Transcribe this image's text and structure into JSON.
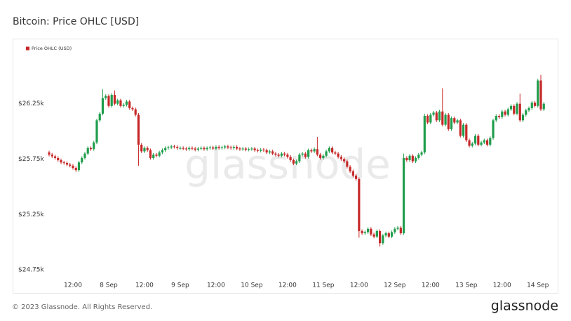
{
  "chart_data": {
    "type": "candlestick",
    "title": "Bitcoin: Price OHLC [USD]",
    "series": [
      {
        "name": "Price OHLC (USD)",
        "color": "#c62828",
        "up_color": "#1f9d4c",
        "down_color": "#c62828",
        "x": [
          "7 Sep 04:00",
          "7 Sep 05:00",
          "7 Sep 06:00",
          "7 Sep 07:00",
          "7 Sep 08:00",
          "7 Sep 09:00",
          "7 Sep 10:00",
          "7 Sep 11:00",
          "7 Sep 12:00",
          "7 Sep 13:00",
          "7 Sep 14:00",
          "7 Sep 15:00",
          "7 Sep 16:00",
          "7 Sep 17:00",
          "7 Sep 18:00",
          "7 Sep 19:00",
          "7 Sep 20:00",
          "7 Sep 21:00",
          "7 Sep 22:00",
          "7 Sep 23:00",
          "8 Sep 00:00",
          "8 Sep 01:00",
          "8 Sep 02:00",
          "8 Sep 03:00",
          "8 Sep 04:00",
          "8 Sep 05:00",
          "8 Sep 06:00",
          "8 Sep 07:00",
          "8 Sep 08:00",
          "8 Sep 09:00",
          "8 Sep 10:00",
          "8 Sep 11:00",
          "8 Sep 12:00",
          "8 Sep 13:00",
          "8 Sep 14:00",
          "8 Sep 15:00",
          "8 Sep 16:00",
          "8 Sep 17:00",
          "8 Sep 18:00",
          "8 Sep 19:00",
          "8 Sep 20:00",
          "8 Sep 21:00",
          "8 Sep 22:00",
          "8 Sep 23:00",
          "9 Sep 00:00",
          "9 Sep 01:00",
          "9 Sep 02:00",
          "9 Sep 03:00",
          "9 Sep 04:00",
          "9 Sep 05:00",
          "9 Sep 06:00",
          "9 Sep 07:00",
          "9 Sep 08:00",
          "9 Sep 09:00",
          "9 Sep 10:00",
          "9 Sep 11:00",
          "9 Sep 12:00",
          "9 Sep 13:00",
          "9 Sep 14:00",
          "9 Sep 15:00",
          "9 Sep 16:00",
          "9 Sep 17:00",
          "9 Sep 18:00",
          "9 Sep 19:00",
          "9 Sep 20:00",
          "9 Sep 21:00",
          "9 Sep 22:00",
          "9 Sep 23:00",
          "10 Sep 00:00",
          "10 Sep 01:00",
          "10 Sep 02:00",
          "10 Sep 03:00",
          "10 Sep 04:00",
          "10 Sep 05:00",
          "10 Sep 06:00",
          "10 Sep 07:00",
          "10 Sep 08:00",
          "10 Sep 09:00",
          "10 Sep 10:00",
          "10 Sep 11:00",
          "10 Sep 12:00",
          "10 Sep 13:00",
          "10 Sep 14:00",
          "10 Sep 15:00",
          "10 Sep 16:00",
          "10 Sep 17:00",
          "10 Sep 18:00",
          "10 Sep 19:00",
          "10 Sep 20:00",
          "10 Sep 21:00",
          "10 Sep 22:00",
          "10 Sep 23:00",
          "11 Sep 00:00",
          "11 Sep 01:00",
          "11 Sep 02:00",
          "11 Sep 03:00",
          "11 Sep 04:00",
          "11 Sep 05:00",
          "11 Sep 06:00",
          "11 Sep 07:00",
          "11 Sep 08:00",
          "11 Sep 09:00",
          "11 Sep 10:00",
          "11 Sep 11:00",
          "11 Sep 12:00",
          "11 Sep 13:00",
          "11 Sep 14:00",
          "11 Sep 15:00",
          "11 Sep 16:00",
          "11 Sep 17:00",
          "11 Sep 18:00",
          "11 Sep 19:00",
          "11 Sep 20:00",
          "11 Sep 21:00",
          "11 Sep 22:00",
          "11 Sep 23:00",
          "12 Sep 00:00",
          "12 Sep 01:00",
          "12 Sep 02:00",
          "12 Sep 03:00",
          "12 Sep 04:00",
          "12 Sep 05:00",
          "12 Sep 06:00",
          "12 Sep 07:00",
          "12 Sep 08:00",
          "12 Sep 09:00",
          "12 Sep 10:00",
          "12 Sep 11:00",
          "12 Sep 12:00",
          "12 Sep 13:00",
          "12 Sep 14:00",
          "12 Sep 15:00",
          "12 Sep 16:00",
          "12 Sep 17:00",
          "12 Sep 18:00",
          "12 Sep 19:00",
          "12 Sep 20:00",
          "12 Sep 21:00",
          "12 Sep 22:00",
          "12 Sep 23:00",
          "13 Sep 00:00",
          "13 Sep 01:00",
          "13 Sep 02:00",
          "13 Sep 03:00",
          "13 Sep 04:00",
          "13 Sep 05:00",
          "13 Sep 06:00",
          "13 Sep 07:00",
          "13 Sep 08:00",
          "13 Sep 09:00",
          "13 Sep 10:00",
          "13 Sep 11:00",
          "13 Sep 12:00",
          "13 Sep 13:00",
          "13 Sep 14:00",
          "13 Sep 15:00",
          "13 Sep 16:00",
          "13 Sep 17:00",
          "13 Sep 18:00",
          "13 Sep 19:00",
          "13 Sep 20:00",
          "13 Sep 21:00",
          "13 Sep 22:00",
          "13 Sep 23:00",
          "14 Sep 00:00",
          "14 Sep 01:00",
          "14 Sep 02:00"
        ],
        "open": [
          25810,
          25790,
          25775,
          25760,
          25740,
          25720,
          25715,
          25700,
          25690,
          25670,
          25650,
          25720,
          25760,
          25800,
          25850,
          25840,
          25900,
          26100,
          26160,
          26300,
          26320,
          26230,
          26330,
          26250,
          26280,
          26230,
          26240,
          26270,
          26210,
          26200,
          26150,
          25880,
          25820,
          25850,
          25830,
          25760,
          25790,
          25780,
          25810,
          25830,
          25850,
          25855,
          25865,
          25860,
          25850,
          25850,
          25845,
          25840,
          25850,
          25845,
          25835,
          25845,
          25850,
          25840,
          25850,
          25855,
          25845,
          25860,
          25850,
          25855,
          25865,
          25855,
          25850,
          25860,
          25845,
          25840,
          25845,
          25835,
          25840,
          25845,
          25830,
          25825,
          25835,
          25830,
          25810,
          25820,
          25800,
          25790,
          25780,
          25800,
          25790,
          25770,
          25740,
          25710,
          25730,
          25790,
          25800,
          25770,
          25830,
          25820,
          25840,
          25790,
          25760,
          25780,
          25820,
          25850,
          25810,
          25800,
          25770,
          25750,
          25730,
          25680,
          25640,
          25600,
          25570,
          25100,
          25080,
          25090,
          25120,
          25070,
          25050,
          25100,
          24990,
          25060,
          25080,
          25050,
          25090,
          25120,
          25130,
          25080,
          25760,
          25740,
          25780,
          25730,
          25760,
          25790,
          25810,
          26140,
          26080,
          26150,
          26170,
          26100,
          26180,
          26060,
          26150,
          26020,
          26120,
          26080,
          26100,
          25960,
          26060,
          25920,
          25870,
          25890,
          25960,
          25880,
          25900,
          25920,
          25880,
          25940,
          26100,
          26140,
          26130,
          26180,
          26150,
          26200,
          26230,
          26160,
          26250,
          26100,
          26150,
          26190,
          26210,
          26260,
          26230,
          26460,
          26200
        ],
        "high": [
          25825,
          25805,
          25790,
          25775,
          25755,
          25735,
          25730,
          25715,
          25705,
          25685,
          25735,
          25775,
          25815,
          25865,
          25865,
          25915,
          26115,
          26175,
          26380,
          26335,
          26335,
          26345,
          26370,
          26295,
          26295,
          26255,
          26285,
          26285,
          26225,
          26215,
          26165,
          25895,
          25865,
          25865,
          25845,
          25805,
          25805,
          25825,
          25845,
          25865,
          25870,
          25880,
          25880,
          25875,
          25865,
          25865,
          25860,
          25865,
          25865,
          25860,
          25860,
          25865,
          25865,
          25865,
          25870,
          25870,
          25875,
          25875,
          25870,
          25880,
          25880,
          25870,
          25875,
          25875,
          25860,
          25860,
          25860,
          25855,
          25860,
          25860,
          25845,
          25850,
          25850,
          25845,
          25835,
          25835,
          25815,
          25805,
          25815,
          25815,
          25805,
          25785,
          25755,
          25745,
          25805,
          25815,
          25815,
          25845,
          25845,
          25855,
          25950,
          25805,
          25795,
          25835,
          25865,
          25865,
          25825,
          25815,
          25785,
          25765,
          25745,
          25695,
          25655,
          25615,
          25585,
          25115,
          25105,
          25135,
          25135,
          25085,
          25115,
          25115,
          25075,
          25095,
          25095,
          25105,
          25135,
          25145,
          25145,
          25800,
          25775,
          25795,
          25795,
          25775,
          25805,
          25825,
          26160,
          26155,
          26165,
          26185,
          26185,
          26195,
          26390,
          26165,
          26165,
          26135,
          26135,
          26115,
          26115,
          26075,
          26075,
          25935,
          25905,
          25975,
          25975,
          25915,
          25935,
          25935,
          25955,
          26115,
          26155,
          26155,
          26195,
          26195,
          26215,
          26245,
          26245,
          26265,
          26340,
          26165,
          26205,
          26225,
          26275,
          26275,
          26475,
          26510,
          26265
        ],
        "low": [
          25775,
          25760,
          25745,
          25725,
          25705,
          25700,
          25685,
          25675,
          25655,
          25635,
          25635,
          25705,
          25745,
          25785,
          25825,
          25825,
          25885,
          26085,
          26145,
          26285,
          26215,
          26215,
          26235,
          26235,
          26215,
          26215,
          26225,
          26195,
          26185,
          26135,
          25690,
          25805,
          25805,
          25815,
          25745,
          25745,
          25765,
          25765,
          25795,
          25815,
          25835,
          25840,
          25845,
          25835,
          25835,
          25830,
          25825,
          25825,
          25830,
          25820,
          25820,
          25830,
          25825,
          25825,
          25835,
          25830,
          25830,
          25835,
          25835,
          25840,
          25840,
          25835,
          25835,
          25830,
          25825,
          25825,
          25820,
          25820,
          25825,
          25815,
          25810,
          25810,
          25815,
          25795,
          25795,
          25785,
          25775,
          25765,
          25765,
          25775,
          25755,
          25725,
          25695,
          25695,
          25715,
          25775,
          25755,
          25755,
          25805,
          25805,
          25775,
          25745,
          25745,
          25765,
          25805,
          25795,
          25785,
          25755,
          25735,
          25715,
          25665,
          25625,
          25585,
          25555,
          25040,
          25065,
          25065,
          25075,
          25055,
          25035,
          25035,
          24960,
          24975,
          25045,
          25035,
          25035,
          25075,
          25105,
          25065,
          25065,
          25725,
          25725,
          25715,
          25715,
          25745,
          25775,
          25795,
          26065,
          26065,
          26135,
          26085,
          26085,
          26045,
          26045,
          26005,
          26005,
          26065,
          26065,
          25945,
          25945,
          25905,
          25855,
          25855,
          25875,
          25865,
          25865,
          25885,
          25865,
          25865,
          25925,
          26085,
          26115,
          26115,
          26135,
          26135,
          26185,
          26145,
          26145,
          26085,
          26085,
          26135,
          26175,
          26195,
          26215,
          26215,
          26185,
          26185
        ],
        "close": [
          25790,
          25775,
          25760,
          25740,
          25720,
          25715,
          25700,
          25690,
          25670,
          25650,
          25720,
          25760,
          25800,
          25850,
          25840,
          25900,
          26100,
          26160,
          26300,
          26320,
          26230,
          26330,
          26250,
          26280,
          26230,
          26240,
          26270,
          26210,
          26200,
          26150,
          25880,
          25820,
          25850,
          25830,
          25760,
          25790,
          25780,
          25810,
          25830,
          25850,
          25855,
          25865,
          25860,
          25850,
          25850,
          25845,
          25840,
          25850,
          25845,
          25835,
          25845,
          25850,
          25840,
          25850,
          25855,
          25845,
          25860,
          25850,
          25855,
          25865,
          25855,
          25850,
          25860,
          25845,
          25840,
          25845,
          25835,
          25840,
          25845,
          25830,
          25825,
          25835,
          25830,
          25810,
          25820,
          25800,
          25790,
          25780,
          25800,
          25790,
          25770,
          25740,
          25710,
          25730,
          25790,
          25800,
          25770,
          25830,
          25820,
          25840,
          25790,
          25760,
          25780,
          25820,
          25850,
          25810,
          25800,
          25770,
          25750,
          25730,
          25680,
          25640,
          25600,
          25570,
          25100,
          25080,
          25090,
          25120,
          25070,
          25050,
          25100,
          24990,
          25060,
          25080,
          25050,
          25090,
          25120,
          25130,
          25080,
          25760,
          25740,
          25780,
          25730,
          25760,
          25790,
          25810,
          26140,
          26080,
          26150,
          26170,
          26100,
          26180,
          26060,
          26150,
          26020,
          26120,
          26080,
          26100,
          25960,
          26060,
          25920,
          25870,
          25890,
          25960,
          25880,
          25900,
          25920,
          25880,
          25940,
          26100,
          26140,
          26130,
          26180,
          26150,
          26200,
          26230,
          26160,
          26250,
          26100,
          26150,
          26190,
          26210,
          26260,
          26230,
          26460,
          26200,
          26250
        ]
      }
    ],
    "xlim": [
      "7 Sep 00:00",
      "14 Sep 05:00"
    ],
    "xticks": [
      {
        "value": "7 Sep 12:00",
        "label": "12:00"
      },
      {
        "value": "8 Sep 00:00",
        "label": "8 Sep"
      },
      {
        "value": "8 Sep 12:00",
        "label": "12:00"
      },
      {
        "value": "9 Sep 00:00",
        "label": "9 Sep"
      },
      {
        "value": "9 Sep 12:00",
        "label": "12:00"
      },
      {
        "value": "10 Sep 00:00",
        "label": "10 Sep"
      },
      {
        "value": "10 Sep 12:00",
        "label": "12:00"
      },
      {
        "value": "11 Sep 00:00",
        "label": "11 Sep"
      },
      {
        "value": "11 Sep 12:00",
        "label": "12:00"
      },
      {
        "value": "12 Sep 00:00",
        "label": "12 Sep"
      },
      {
        "value": "12 Sep 12:00",
        "label": "12:00"
      },
      {
        "value": "13 Sep 00:00",
        "label": "13 Sep"
      },
      {
        "value": "13 Sep 12:00",
        "label": "12:00"
      },
      {
        "value": "14 Sep 00:00",
        "label": "14 Sep"
      }
    ],
    "ylim": [
      24700,
      26730
    ],
    "yticks": [
      {
        "value": 24750,
        "label": "$24.75k"
      },
      {
        "value": 25250,
        "label": "$25.25k"
      },
      {
        "value": 25750,
        "label": "$25.75k"
      },
      {
        "value": 26250,
        "label": "$26.25k"
      }
    ],
    "grid": false,
    "legend": "top-left",
    "watermark": "glassnode"
  },
  "footer": {
    "copyright": "© 2023 Glassnode. All Rights Reserved.",
    "logo": "glassnode"
  }
}
